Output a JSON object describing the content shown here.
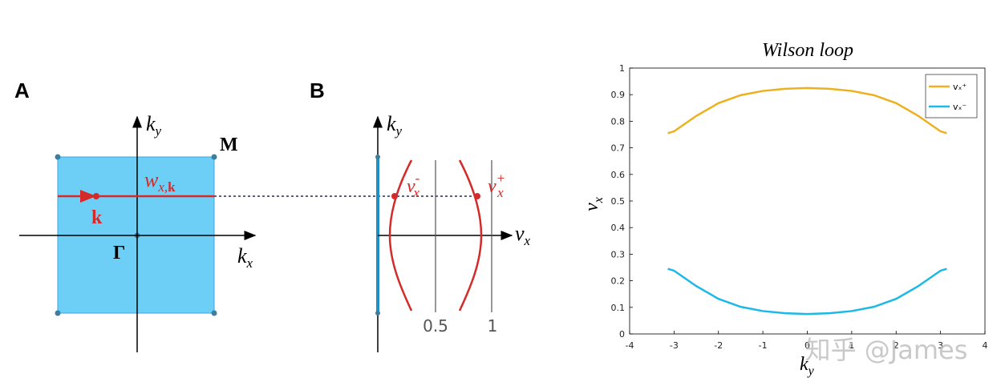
{
  "panel_a": {
    "label": "A",
    "ky": "k",
    "ky_sub": "y",
    "kx": "k",
    "kx_sub": "x",
    "m": "M",
    "gamma": "Γ",
    "w": "w",
    "w_sub": "x,",
    "w_sub_bold": "k",
    "k": "k"
  },
  "panel_b": {
    "label": "B",
    "ky": "k",
    "ky_sub": "y",
    "vx": "v",
    "vx_sub": "x",
    "vminus": "v",
    "vminus_sub": "x",
    "vminus_sup": "-",
    "vplus": "v",
    "vplus_sub": "x",
    "vplus_sup": "+",
    "half": "0.5",
    "one": "1"
  },
  "watermark": "知乎 @James",
  "chart_data": {
    "type": "line",
    "title": "Wilson loop",
    "xlabel": "k",
    "xlabel_sub": "y",
    "ylabel": "v",
    "ylabel_sub": "x",
    "x": [
      -3.14,
      -3,
      -2.5,
      -2,
      -1.5,
      -1,
      -0.5,
      0,
      0.5,
      1,
      1.5,
      2,
      2.5,
      3,
      3.14
    ],
    "series": [
      {
        "name": "vₓ⁺",
        "color": "#edb120",
        "values": [
          0.755,
          0.762,
          0.82,
          0.868,
          0.898,
          0.914,
          0.922,
          0.925,
          0.922,
          0.914,
          0.898,
          0.868,
          0.82,
          0.762,
          0.755
        ]
      },
      {
        "name": "vₓ⁻",
        "color": "#1cb8e8",
        "values": [
          0.245,
          0.238,
          0.18,
          0.132,
          0.102,
          0.086,
          0.078,
          0.075,
          0.078,
          0.086,
          0.102,
          0.132,
          0.18,
          0.238,
          0.245
        ]
      }
    ],
    "xlim": [
      -4,
      4
    ],
    "xticks": [
      -4,
      -3,
      -2,
      -1,
      0,
      1,
      2,
      3,
      4
    ],
    "ylim": [
      0,
      1
    ],
    "yticks": [
      0,
      0.1,
      0.2,
      0.3,
      0.4,
      0.5,
      0.6,
      0.7,
      0.8,
      0.9,
      1
    ],
    "legend": "upper right"
  }
}
